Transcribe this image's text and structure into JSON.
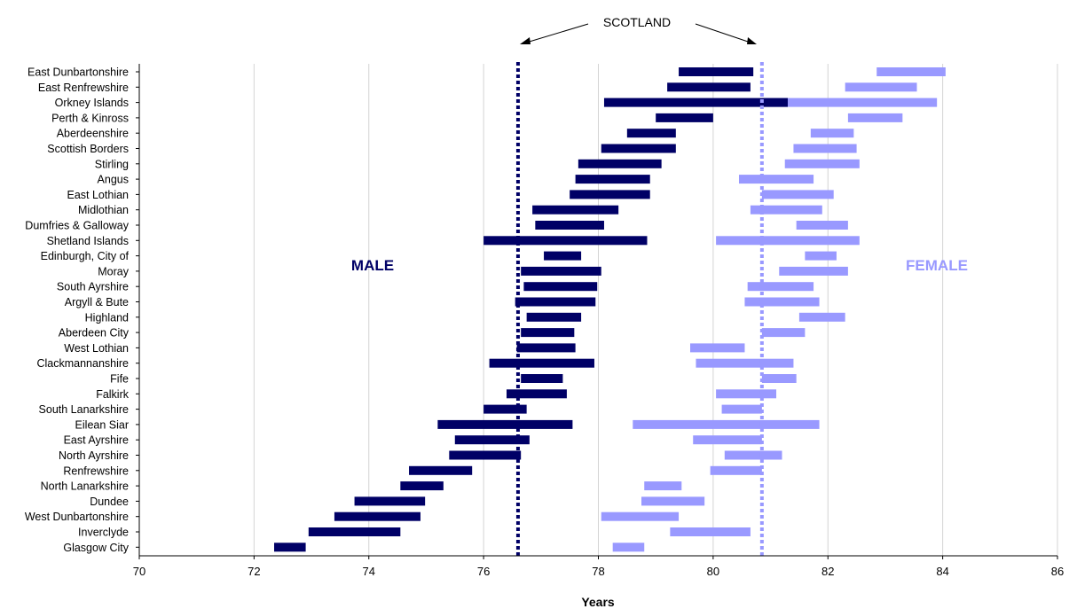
{
  "chart_data": {
    "type": "range-bar",
    "xlabel": "Years",
    "xlim": [
      70,
      86
    ],
    "xticks": [
      "70",
      "72",
      "74",
      "76",
      "78",
      "80",
      "82",
      "84",
      "86"
    ],
    "grid": "vertical",
    "annotation": "SCOTLAND",
    "colors": {
      "male": "#000066",
      "female": "#9999ff"
    },
    "reference_lines": [
      {
        "series": "male",
        "value": 76.6
      },
      {
        "series": "female",
        "value": 80.85
      }
    ],
    "categories": [
      "East Dunbartonshire",
      "East Renfrewshire",
      "Orkney Islands",
      "Perth & Kinross",
      "Aberdeenshire",
      "Scottish Borders",
      "Stirling",
      "Angus",
      "East Lothian",
      "Midlothian",
      "Dumfries & Galloway",
      "Shetland Islands",
      "Edinburgh, City of",
      "Moray",
      "South Ayrshire",
      "Argyll & Bute",
      "Highland",
      "Aberdeen City",
      "West Lothian",
      "Clackmannanshire",
      "Fife",
      "Falkirk",
      "South Lanarkshire",
      "Eilean Siar",
      "East Ayrshire",
      "North Ayrshire",
      "Renfrewshire",
      "North Lanarkshire",
      "Dundee",
      "West Dunbartonshire",
      "Inverclyde",
      "Glasgow City"
    ],
    "series": [
      {
        "name": "MALE",
        "ranges": [
          [
            79.4,
            80.7
          ],
          [
            79.2,
            80.65
          ],
          [
            78.1,
            81.3
          ],
          [
            79.0,
            80.0
          ],
          [
            78.5,
            79.35
          ],
          [
            78.05,
            79.35
          ],
          [
            77.65,
            79.1
          ],
          [
            77.6,
            78.9
          ],
          [
            77.5,
            78.9
          ],
          [
            76.85,
            78.35
          ],
          [
            76.9,
            78.1
          ],
          [
            76.0,
            78.85
          ],
          [
            77.05,
            77.7
          ],
          [
            76.65,
            78.05
          ],
          [
            76.7,
            77.98
          ],
          [
            76.55,
            77.95
          ],
          [
            76.75,
            77.7
          ],
          [
            76.65,
            77.58
          ],
          [
            76.58,
            77.6
          ],
          [
            76.1,
            77.93
          ],
          [
            76.65,
            77.38
          ],
          [
            76.4,
            77.45
          ],
          [
            76.0,
            76.75
          ],
          [
            75.2,
            77.55
          ],
          [
            75.5,
            76.8
          ],
          [
            75.4,
            76.65
          ],
          [
            74.7,
            75.8
          ],
          [
            74.55,
            75.3
          ],
          [
            73.75,
            74.98
          ],
          [
            73.4,
            74.9
          ],
          [
            72.95,
            74.55
          ],
          [
            72.35,
            72.9
          ]
        ]
      },
      {
        "name": "FEMALE",
        "ranges": [
          [
            82.85,
            84.05
          ],
          [
            82.3,
            83.55
          ],
          [
            80.85,
            83.9
          ],
          [
            82.35,
            83.3
          ],
          [
            81.7,
            82.45
          ],
          [
            81.4,
            82.5
          ],
          [
            81.25,
            82.55
          ],
          [
            80.45,
            81.75
          ],
          [
            80.85,
            82.1
          ],
          [
            80.65,
            81.9
          ],
          [
            81.45,
            82.35
          ],
          [
            80.05,
            82.55
          ],
          [
            81.6,
            82.15
          ],
          [
            81.15,
            82.35
          ],
          [
            80.6,
            81.75
          ],
          [
            80.55,
            81.85
          ],
          [
            81.5,
            82.3
          ],
          [
            80.85,
            81.6
          ],
          [
            79.6,
            80.55
          ],
          [
            79.7,
            81.4
          ],
          [
            80.85,
            81.45
          ],
          [
            80.05,
            81.1
          ],
          [
            80.15,
            80.85
          ],
          [
            78.6,
            81.85
          ],
          [
            79.65,
            80.85
          ],
          [
            80.2,
            81.2
          ],
          [
            79.95,
            80.85
          ],
          [
            78.8,
            79.45
          ],
          [
            78.75,
            79.85
          ],
          [
            78.05,
            79.4
          ],
          [
            79.25,
            80.65
          ],
          [
            78.25,
            78.8
          ]
        ]
      }
    ]
  }
}
